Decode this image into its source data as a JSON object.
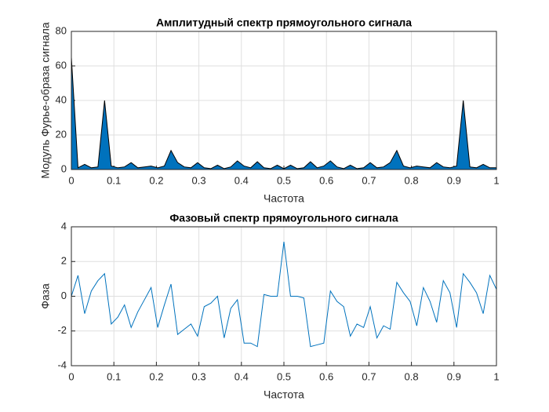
{
  "chart_data": [
    {
      "type": "area",
      "title": "Амплитудный спектр прямоугольного сигнала",
      "xlabel": "Частота",
      "ylabel": "Модуль Фурье-образа сигнала",
      "color": "#0072bd",
      "edge_color": "#000000",
      "grid": true,
      "x": [
        0,
        0.0156,
        0.0313,
        0.0469,
        0.0625,
        0.0781,
        0.0938,
        0.1094,
        0.125,
        0.1406,
        0.1563,
        0.1719,
        0.1875,
        0.2031,
        0.2188,
        0.2344,
        0.25,
        0.2656,
        0.2813,
        0.2969,
        0.3125,
        0.3281,
        0.3438,
        0.3594,
        0.375,
        0.3906,
        0.4063,
        0.4219,
        0.4375,
        0.4531,
        0.4688,
        0.4844,
        0.5,
        0.5156,
        0.5313,
        0.5469,
        0.5625,
        0.5781,
        0.5938,
        0.6094,
        0.625,
        0.6406,
        0.6563,
        0.6719,
        0.6875,
        0.7031,
        0.7188,
        0.7344,
        0.75,
        0.7656,
        0.7813,
        0.7969,
        0.8125,
        0.8281,
        0.8438,
        0.8594,
        0.875,
        0.8906,
        0.9063,
        0.9219,
        0.9375,
        0.9531,
        0.9688,
        0.9844,
        1
      ],
      "values": [
        65,
        1,
        3,
        1,
        1.5,
        40,
        2,
        1,
        1.5,
        4,
        1,
        1.5,
        2,
        1,
        2,
        11,
        4,
        1.5,
        1,
        4,
        1,
        0.5,
        2.5,
        0.5,
        1.5,
        5,
        2,
        1,
        4.5,
        1,
        0.5,
        2.5,
        0.5,
        2.5,
        0.5,
        1,
        4.5,
        1,
        2,
        5,
        1.5,
        0.5,
        2.5,
        0.5,
        1,
        4,
        1,
        1.5,
        4,
        11,
        2,
        1,
        2,
        1.5,
        1,
        4,
        1.5,
        1,
        2,
        40,
        1.5,
        1,
        3,
        1,
        1
      ],
      "xlim": [
        0,
        1
      ],
      "xticks": [
        0,
        0.1,
        0.2,
        0.3,
        0.4,
        0.5,
        0.6,
        0.7,
        0.8,
        0.9,
        1
      ],
      "ylim": [
        0,
        80
      ],
      "yticks": [
        0,
        20,
        40,
        60,
        80
      ]
    },
    {
      "type": "line",
      "title": "Фазовый спектр прямоугольного сигнала",
      "xlabel": "Частота",
      "ylabel": "Фаза",
      "color": "#0072bd",
      "grid": true,
      "x": [
        0,
        0.0156,
        0.0313,
        0.0469,
        0.0625,
        0.0781,
        0.0938,
        0.1094,
        0.125,
        0.1406,
        0.1563,
        0.1719,
        0.1875,
        0.2031,
        0.2188,
        0.2344,
        0.25,
        0.2656,
        0.2813,
        0.2969,
        0.3125,
        0.3281,
        0.3438,
        0.3594,
        0.375,
        0.3906,
        0.4063,
        0.4219,
        0.4375,
        0.4531,
        0.4688,
        0.4844,
        0.5,
        0.5156,
        0.5313,
        0.5469,
        0.5625,
        0.5781,
        0.5938,
        0.6094,
        0.625,
        0.6406,
        0.6563,
        0.6719,
        0.6875,
        0.7031,
        0.7188,
        0.7344,
        0.75,
        0.7656,
        0.7813,
        0.7969,
        0.8125,
        0.8281,
        0.8438,
        0.8594,
        0.875,
        0.8906,
        0.9063,
        0.9219,
        0.9375,
        0.9531,
        0.9688,
        0.9844,
        1
      ],
      "values": [
        0,
        1.2,
        -1.0,
        0.3,
        0.9,
        1.3,
        -1.6,
        -1.2,
        -0.5,
        -1.8,
        -0.9,
        -0.2,
        0.5,
        -1.8,
        -0.5,
        0.7,
        -2.2,
        -1.9,
        -1.6,
        -2.3,
        -0.6,
        -0.4,
        0,
        -2.4,
        -0.7,
        -0.2,
        -2.7,
        -2.7,
        -2.9,
        0.1,
        0,
        0,
        3.14,
        0,
        0,
        -0.1,
        -2.9,
        -2.8,
        -2.7,
        0.3,
        -0.3,
        -0.6,
        -2.3,
        -1.6,
        -1.8,
        -0.6,
        -2.4,
        -1.7,
        -1.9,
        0.8,
        0.2,
        -0.3,
        -1.7,
        0.5,
        -0.3,
        -1.5,
        0.9,
        0.2,
        -1.8,
        1.3,
        0.8,
        0.2,
        -1.0,
        1.2,
        0.4
      ],
      "xlim": [
        0,
        1
      ],
      "xticks": [
        0,
        0.1,
        0.2,
        0.3,
        0.4,
        0.5,
        0.6,
        0.7,
        0.8,
        0.9,
        1
      ],
      "ylim": [
        -4,
        4
      ],
      "yticks": [
        -4,
        -2,
        0,
        2,
        4
      ]
    }
  ]
}
